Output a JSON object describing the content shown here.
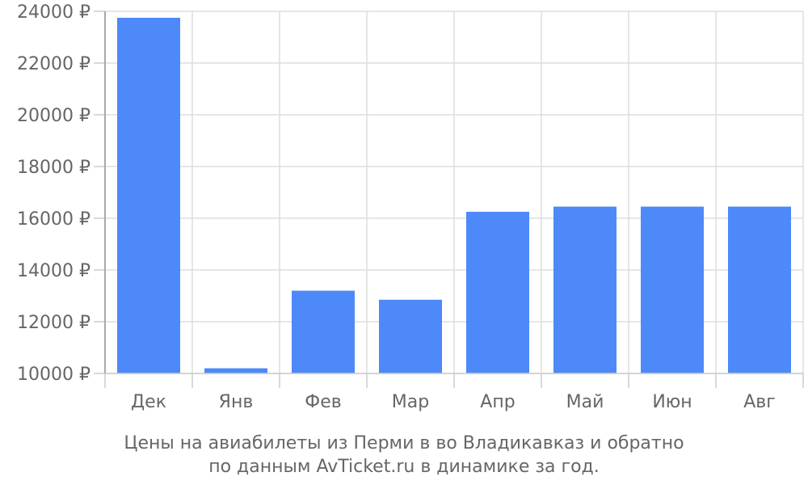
{
  "chart_data": {
    "type": "bar",
    "categories": [
      "Дек",
      "Янв",
      "Фев",
      "Мар",
      "Апр",
      "Май",
      "Июн",
      "Авг"
    ],
    "values": [
      23750,
      10200,
      13200,
      12850,
      16250,
      16450,
      16450,
      16450
    ],
    "ylim": [
      10000,
      24000
    ],
    "yticks": [
      10000,
      12000,
      14000,
      16000,
      18000,
      20000,
      22000,
      24000
    ],
    "ytick_suffix": " ₽",
    "ytick_labels": [
      "10000 ₽",
      "12000 ₽",
      "14000 ₽",
      "16000 ₽",
      "18000 ₽",
      "20000 ₽",
      "22000 ₽",
      "24000 ₽"
    ],
    "grid": true,
    "bar_color": "#4d89f9",
    "caption_line1": "Цены на авиабилеты из Перми в во Владикавказ и обратно",
    "caption_line2": "по данным AvTicket.ru в динамике за год."
  }
}
